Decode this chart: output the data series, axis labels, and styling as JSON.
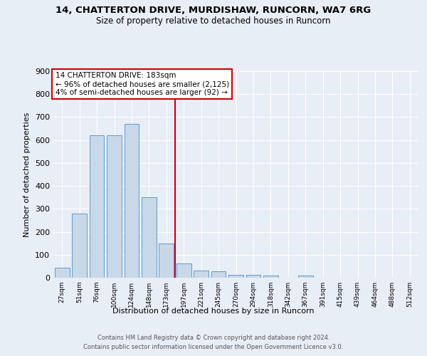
{
  "title": "14, CHATTERTON DRIVE, MURDISHAW, RUNCORN, WA7 6RG",
  "subtitle": "Size of property relative to detached houses in Runcorn",
  "xlabel": "Distribution of detached houses by size in Runcorn",
  "ylabel": "Number of detached properties",
  "bar_labels": [
    "27sqm",
    "51sqm",
    "76sqm",
    "100sqm",
    "124sqm",
    "148sqm",
    "173sqm",
    "197sqm",
    "221sqm",
    "245sqm",
    "270sqm",
    "294sqm",
    "318sqm",
    "342sqm",
    "367sqm",
    "391sqm",
    "415sqm",
    "439sqm",
    "464sqm",
    "488sqm",
    "512sqm"
  ],
  "bar_values": [
    42,
    280,
    622,
    622,
    670,
    350,
    148,
    63,
    30,
    27,
    13,
    11,
    9,
    0,
    8,
    0,
    0,
    0,
    0,
    0,
    0
  ],
  "bar_color": "#c8d8e8",
  "bar_edgecolor": "#5b9bd5",
  "vline_x": 6.5,
  "vline_color": "#cc0000",
  "annotation_text": "14 CHATTERTON DRIVE: 183sqm\n← 96% of detached houses are smaller (2,125)\n4% of semi-detached houses are larger (92) →",
  "annotation_box_color": "#cc0000",
  "annotation_bg": "#ffffff",
  "ylim": [
    0,
    900
  ],
  "yticks": [
    0,
    100,
    200,
    300,
    400,
    500,
    600,
    700,
    800,
    900
  ],
  "footer": "Contains HM Land Registry data © Crown copyright and database right 2024.\nContains public sector information licensed under the Open Government Licence v3.0.",
  "bg_color": "#e8eef6",
  "plot_bg_color": "#e8eef6",
  "grid_color": "#ffffff"
}
